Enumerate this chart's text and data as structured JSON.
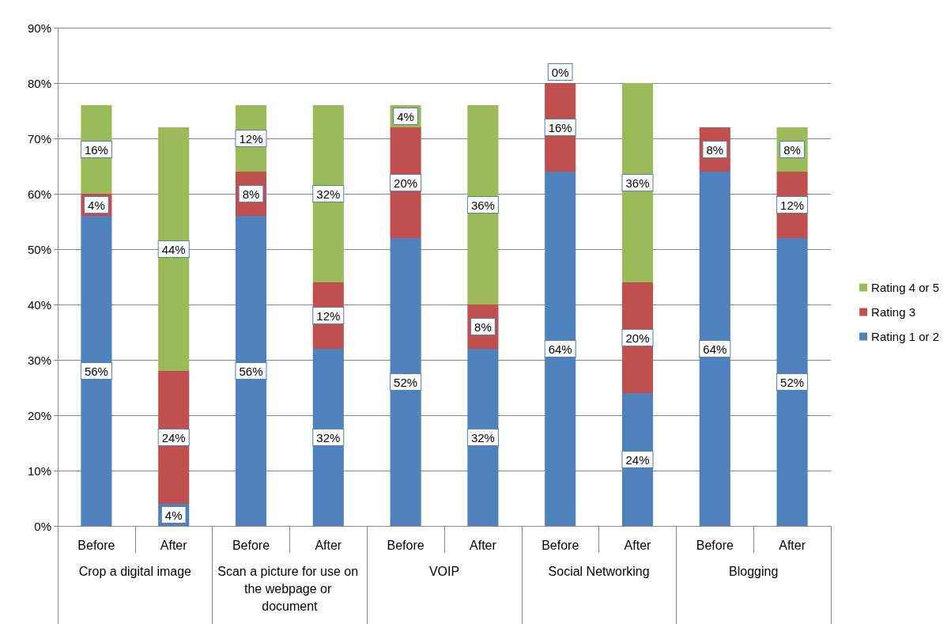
{
  "chart_data": {
    "type": "bar",
    "stacked": true,
    "categories": [
      "Before",
      "After",
      "Before",
      "After",
      "Before",
      "After",
      "Before",
      "After",
      "Before",
      "After"
    ],
    "annotations": [
      "Crop a digital image",
      "Scan a picture for use on the webpage or document",
      "VOIP",
      "Social Networking",
      "Blogging"
    ],
    "series": [
      {
        "name": "Rating 1 or 2",
        "color": "#4f81bd",
        "values": [
          56,
          4,
          56,
          32,
          52,
          32,
          64,
          24,
          64,
          52
        ],
        "value_labels": [
          "56%",
          "4%",
          "56%",
          "32%",
          "52%",
          "32%",
          "64%",
          "24%",
          "64%",
          "52%"
        ]
      },
      {
        "name": "Rating 3",
        "color": "#c0504d",
        "values": [
          4,
          24,
          8,
          12,
          20,
          8,
          16,
          20,
          8,
          12
        ],
        "value_labels": [
          "4%",
          "24%",
          "8%",
          "12%",
          "20%",
          "8%",
          "16%",
          "20%",
          "8%",
          "12%"
        ]
      },
      {
        "name": "Rating 4 or 5",
        "color": "#9bbb59",
        "values": [
          16,
          44,
          12,
          32,
          4,
          36,
          0,
          36,
          null,
          8
        ],
        "value_labels": [
          "16%",
          "44%",
          "12%",
          "32%",
          "4%",
          "36%",
          "0%",
          "36%",
          null,
          "8%"
        ]
      }
    ],
    "ylim": [
      0,
      90
    ],
    "yticks": [
      {
        "value": 0,
        "label": "0%"
      },
      {
        "value": 10,
        "label": "10%"
      },
      {
        "value": 20,
        "label": "20%"
      },
      {
        "value": 30,
        "label": "30%"
      },
      {
        "value": 40,
        "label": "40%"
      },
      {
        "value": 50,
        "label": "50%"
      },
      {
        "value": 60,
        "label": "60%"
      },
      {
        "value": 70,
        "label": "70%"
      },
      {
        "value": 80,
        "label": "80%"
      },
      {
        "value": 90,
        "label": "90%"
      }
    ],
    "grid": "y",
    "legend": "right"
  }
}
